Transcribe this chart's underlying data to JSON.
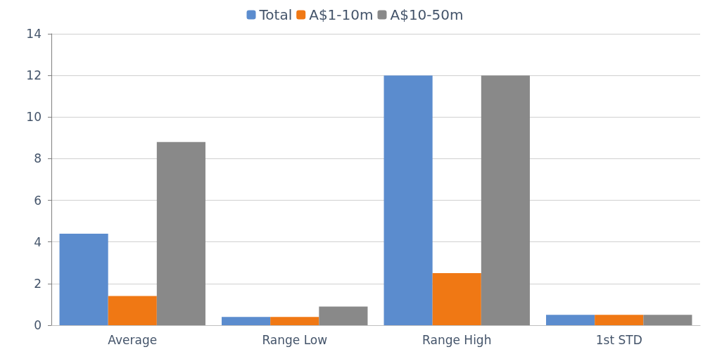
{
  "chart_data": {
    "type": "bar",
    "categories": [
      "Average",
      "Range Low",
      "Range High",
      "1st STD"
    ],
    "series": [
      {
        "name": "Total",
        "color": "#5b8cce",
        "values": [
          4.4,
          0.4,
          12,
          0.5
        ]
      },
      {
        "name": "A$1-10m",
        "color": "#f07814",
        "values": [
          1.4,
          0.4,
          2.5,
          0.5
        ]
      },
      {
        "name": "A$10-50m",
        "color": "#898989",
        "values": [
          8.8,
          0.9,
          12,
          0.5
        ]
      }
    ],
    "ylim": [
      0,
      14
    ],
    "yticks": [
      0,
      2,
      4,
      6,
      8,
      10,
      12,
      14
    ],
    "grid": "y",
    "legend": "top"
  }
}
